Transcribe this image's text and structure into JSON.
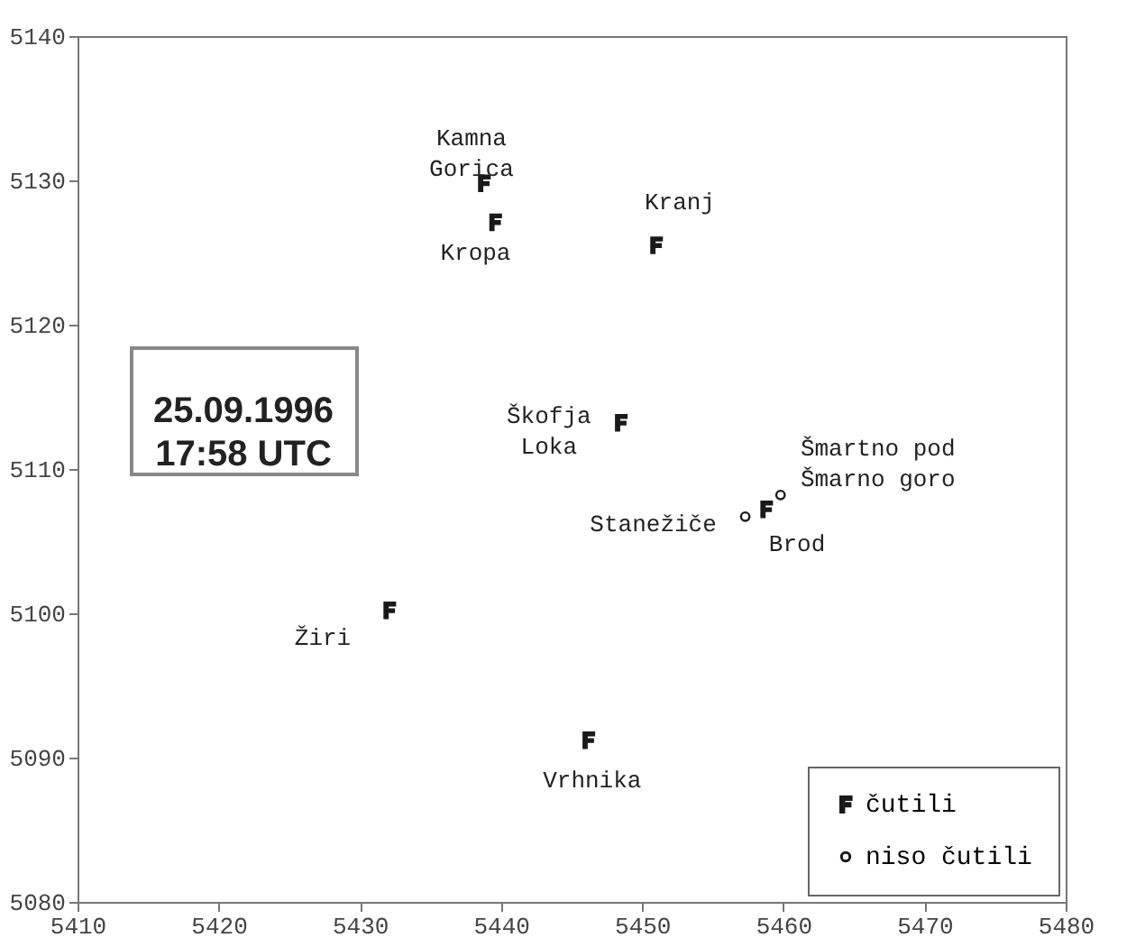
{
  "chart_data": {
    "type": "scatter",
    "xlim": [
      5410,
      5480
    ],
    "xticks": [
      5410,
      5420,
      5430,
      5440,
      5450,
      5460,
      5470,
      5480
    ],
    "ylim": [
      5080,
      5140
    ],
    "yticks": [
      5080,
      5090,
      5100,
      5110,
      5120,
      5130,
      5140
    ],
    "grid": false,
    "legend": "bottom right",
    "series": [
      {
        "name": "čutili",
        "color": "#1a1a1a",
        "x": [
          5438.8,
          5439.6,
          5451.0,
          5448.5,
          5458.8,
          5432.1,
          5446.2
        ],
        "values": [
          5129.8,
          5127.1,
          5125.5,
          5113.2,
          5107.2,
          5100.2,
          5091.2
        ]
      },
      {
        "name": "niso čutili",
        "color": "#1a1a1a",
        "marker": "circle",
        "x": [
          5459.8,
          5457.3
        ],
        "values": [
          5108.2,
          5106.7
        ]
      }
    ],
    "annotations": [
      {
        "text": "Kamna\nGorica",
        "x": 5438.8,
        "y": 5129.8
      },
      {
        "text": "Kropa",
        "x": 5439.6,
        "y": 5127.1
      },
      {
        "text": "Kranj",
        "x": 5451.0,
        "y": 5125.5
      },
      {
        "text": "Škofja\nLoka",
        "x": 5448.5,
        "y": 5113.2
      },
      {
        "text": "Šmartno pod\nŠmarno goro",
        "x": 5459.8,
        "y": 5108.2
      },
      {
        "text": "Stanežiče",
        "x": 5457.3,
        "y": 5106.7
      },
      {
        "text": "Brod",
        "x": 5458.8,
        "y": 5107.2
      },
      {
        "text": "Žiri",
        "x": 5432.1,
        "y": 5100.2
      },
      {
        "text": "Vrhnika",
        "x": 5446.2,
        "y": 5091.2
      },
      "25.09.1996\n17:58 UTC"
    ]
  }
}
